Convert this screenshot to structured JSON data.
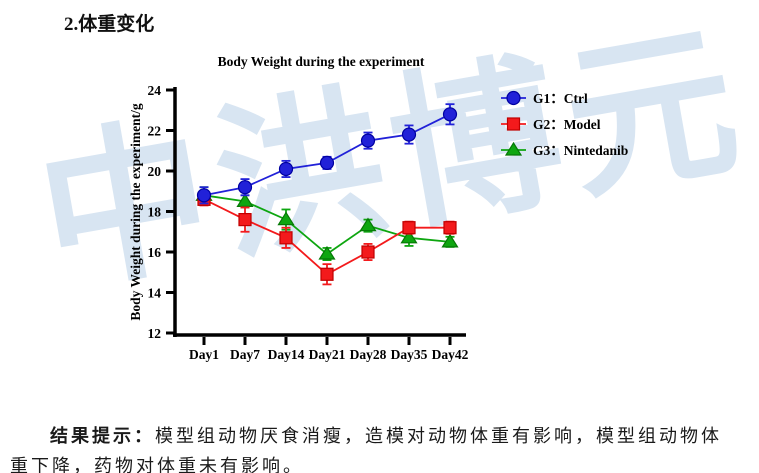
{
  "page": {
    "heading": "2.体重变化",
    "watermark": "中洪博元"
  },
  "colors": {
    "watermark": "#d8e5f2",
    "axis": "#000000",
    "g1_blue": "#2121d8",
    "g2_red": "#f31a1c",
    "g3_green": "#0ea610"
  },
  "chart_data": {
    "type": "line",
    "title": "Body Weight during the experiment",
    "xlabel": "",
    "ylabel": "Body Weight during the experiment/g",
    "categories": [
      "Day1",
      "Day7",
      "Day14",
      "Day21",
      "Day28",
      "Day35",
      "Day42"
    ],
    "ylim": [
      12,
      24
    ],
    "ytick_step": 2,
    "grid": false,
    "legend_position": "right",
    "error_bars": true,
    "series": [
      {
        "name": "G1：Ctrl",
        "marker": "circle",
        "color": "#2121d8",
        "edge": "#0000a0",
        "values": [
          18.8,
          19.2,
          20.1,
          20.4,
          21.5,
          21.8,
          22.8
        ],
        "errors": [
          0.4,
          0.4,
          0.4,
          0.3,
          0.4,
          0.45,
          0.5
        ]
      },
      {
        "name": "G2：Model",
        "marker": "square",
        "color": "#f31a1c",
        "edge": "#c00000",
        "values": [
          18.6,
          17.6,
          16.7,
          14.9,
          16.0,
          17.2,
          17.2
        ],
        "errors": [
          0.3,
          0.6,
          0.5,
          0.5,
          0.4,
          0.3,
          0.3
        ]
      },
      {
        "name": "G3：Nintedanib",
        "marker": "triangle",
        "color": "#0ea610",
        "edge": "#067806",
        "values": [
          18.8,
          18.5,
          17.6,
          15.9,
          17.3,
          16.7,
          16.5
        ],
        "errors": [
          0.4,
          0.3,
          0.5,
          0.3,
          0.3,
          0.4,
          0.25
        ]
      }
    ]
  },
  "result_note": {
    "label": "结果提示：",
    "text": "模型组动物厌食消瘦，造模对动物体重有影响，模型组动物体重下降，药物对体重未有影响。"
  }
}
